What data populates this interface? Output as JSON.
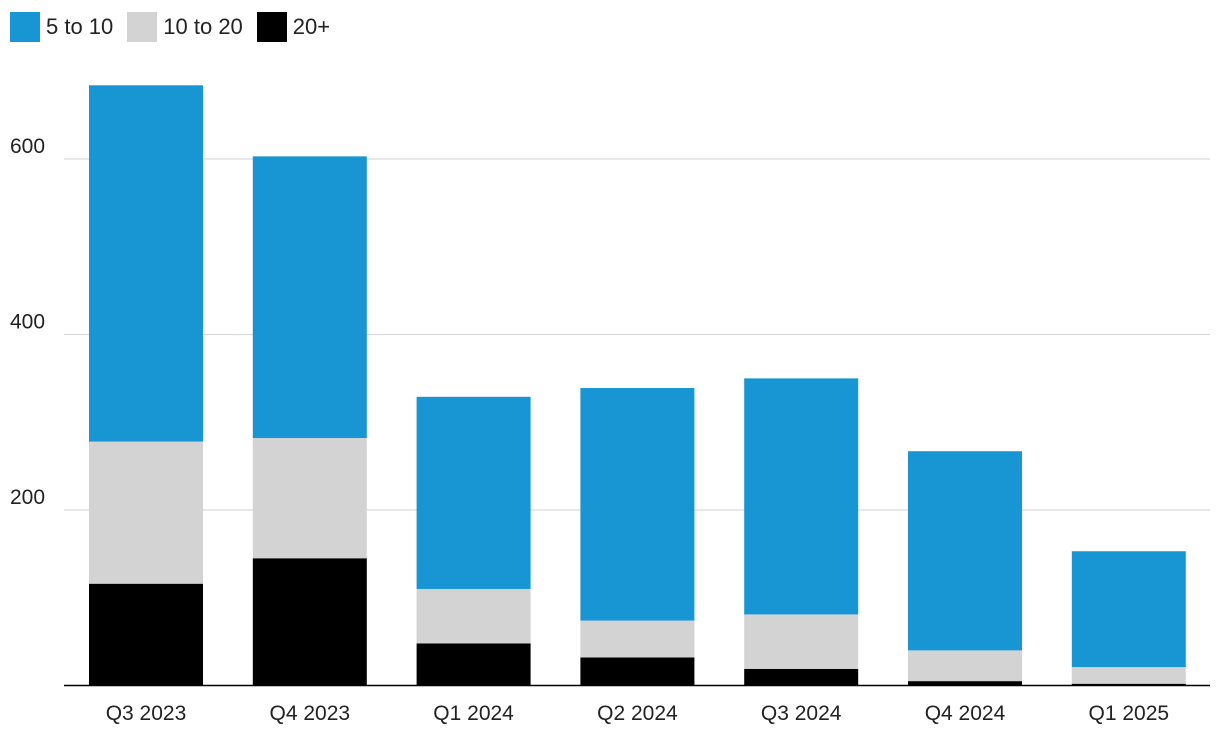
{
  "chart_data": {
    "type": "bar",
    "stacked": true,
    "title": "",
    "xlabel": "",
    "ylabel": "",
    "categories": [
      "Q3 2023",
      "Q4 2023",
      "Q1 2024",
      "Q2 2024",
      "Q3 2024",
      "Q4 2024",
      "Q1 2025"
    ],
    "series": [
      {
        "name": "20+",
        "color": "#000000",
        "values": [
          116,
          145,
          48,
          32,
          19,
          5,
          2
        ]
      },
      {
        "name": "10 to 20",
        "color": "#d3d3d3",
        "values": [
          162,
          137,
          62,
          42,
          62,
          35,
          19
        ]
      },
      {
        "name": "5 to 10",
        "color": "#1896d3",
        "values": [
          406,
          321,
          219,
          265,
          269,
          227,
          132
        ]
      }
    ],
    "legend_order": [
      "5 to 10",
      "10 to 20",
      "20+"
    ],
    "legend_position": "top-left",
    "ylim": [
      0,
      700
    ],
    "yticks": [
      200,
      400,
      600
    ],
    "grid": true
  }
}
